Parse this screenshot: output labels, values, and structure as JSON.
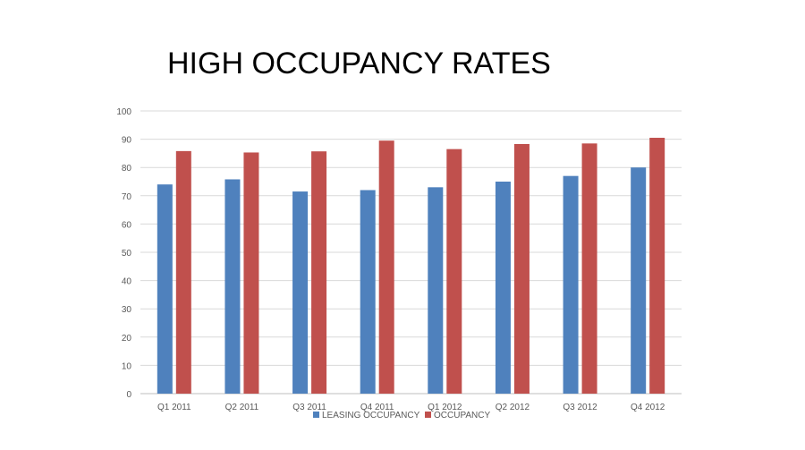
{
  "slide": {
    "title": "HIGH OCCUPANCY RATES"
  },
  "chart_data": {
    "type": "bar",
    "categories": [
      "Q1 2011",
      "Q2 2011",
      "Q3 2011",
      "Q4 2011",
      "Q1 2012",
      "Q2 2012",
      "Q3 2012",
      "Q4 2012"
    ],
    "series": [
      {
        "name": "LEASING OCCUPANCY",
        "color": "#4F81BD",
        "values": [
          74,
          75.8,
          71.5,
          72,
          73,
          75,
          77,
          80
        ]
      },
      {
        "name": "OCCUPANCY",
        "color": "#C0504D",
        "values": [
          85.8,
          85.3,
          85.7,
          89.5,
          86.5,
          88.3,
          88.5,
          90.5
        ]
      }
    ],
    "ylim": [
      0,
      100
    ],
    "yticks": [
      0,
      10,
      20,
      30,
      40,
      50,
      60,
      70,
      80,
      90,
      100
    ],
    "grid": true,
    "legend": "bottom"
  }
}
